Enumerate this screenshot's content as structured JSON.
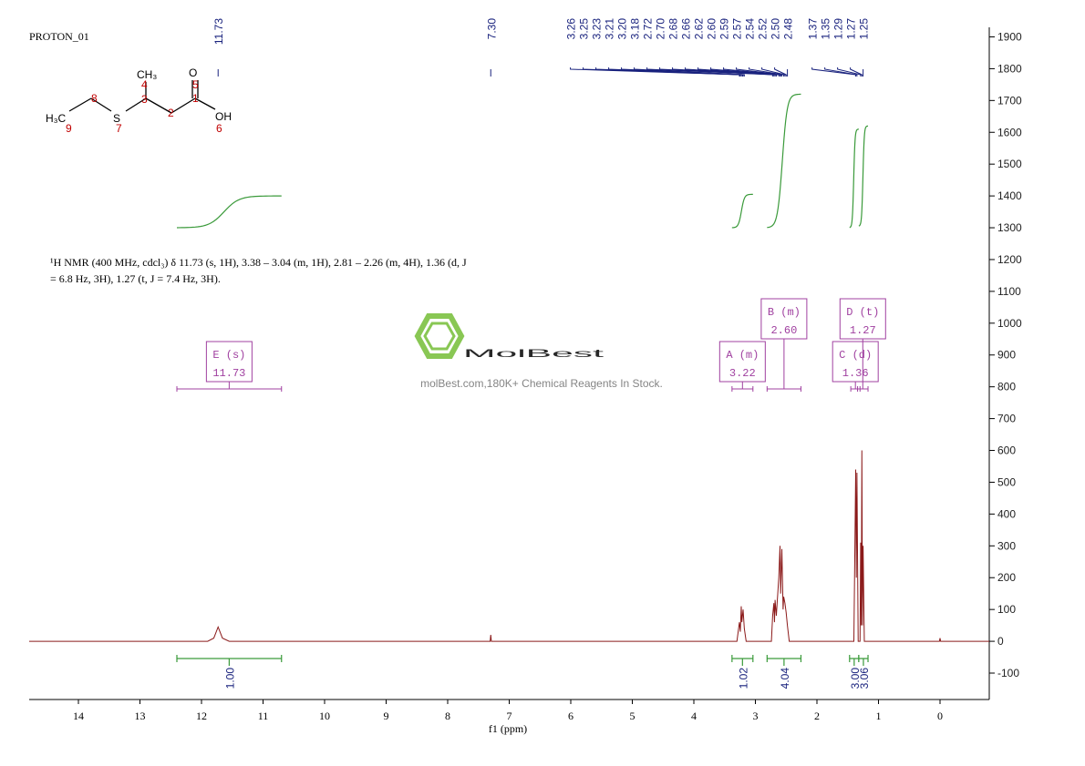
{
  "chart_data": {
    "type": "line",
    "title": "PROTON_01",
    "description": [
      "¹H NMR (400 MHz, cdcl₃) δ 11.73 (s, 1H), 3.38 – 3.04 (m, 1H), 2.81 – 2.26 (m, 4H), 1.36 (d, J",
      "= 6.8 Hz, 3H), 1.27 (t, J = 7.4 Hz, 3H)."
    ],
    "xlabel": "f1 (ppm)",
    "xlim": [
      14.8,
      -0.8
    ],
    "xticks": [
      14,
      13,
      12,
      11,
      10,
      9,
      8,
      7,
      6,
      5,
      4,
      3,
      2,
      1,
      0
    ],
    "ylim": [
      -183,
      1930
    ],
    "yticks": [
      -100,
      0,
      100,
      200,
      300,
      400,
      500,
      600,
      700,
      800,
      900,
      1000,
      1100,
      1200,
      1300,
      1400,
      1500,
      1600,
      1700,
      1800,
      1900
    ],
    "color": "#8b1a1a",
    "x": [
      14.8,
      11.9,
      11.8,
      11.73,
      11.66,
      11.55,
      7.31,
      7.3,
      7.29,
      3.3,
      3.26,
      3.245,
      3.23,
      3.22,
      3.2,
      3.18,
      3.15,
      2.74,
      2.72,
      2.7,
      2.69,
      2.68,
      2.66,
      2.62,
      2.6,
      2.59,
      2.57,
      2.55,
      2.54,
      2.52,
      2.5,
      2.48,
      2.45,
      1.4,
      1.37,
      1.36,
      1.35,
      1.33,
      1.3,
      1.29,
      1.28,
      1.27,
      1.26,
      1.25,
      1.23,
      0.01,
      0,
      -0.01,
      -0.8
    ],
    "values": [
      0,
      0,
      10,
      45,
      10,
      0,
      0,
      20,
      0,
      0,
      60,
      30,
      110,
      60,
      100,
      40,
      0,
      0,
      80,
      120,
      60,
      130,
      80,
      200,
      300,
      150,
      290,
      100,
      140,
      120,
      90,
      50,
      0,
      0,
      540,
      200,
      530,
      0,
      0,
      310,
      50,
      600,
      50,
      300,
      0,
      0,
      10,
      0,
      0
    ],
    "peak_color": "#1a237e",
    "peaks": [
      {
        "value": 11.73,
        "label": "11.73"
      },
      {
        "value": 7.3,
        "label": "7.30"
      },
      {
        "value": 3.26,
        "label": "3.26"
      },
      {
        "value": 3.25,
        "label": "3.25"
      },
      {
        "value": 3.23,
        "label": "3.23"
      },
      {
        "value": 3.21,
        "label": "3.21"
      },
      {
        "value": 3.2,
        "label": "3.20"
      },
      {
        "value": 3.18,
        "label": "3.18"
      },
      {
        "value": 2.72,
        "label": "2.72"
      },
      {
        "value": 2.7,
        "label": "2.70"
      },
      {
        "value": 2.68,
        "label": "2.68"
      },
      {
        "value": 2.66,
        "label": "2.66"
      },
      {
        "value": 2.62,
        "label": "2.62"
      },
      {
        "value": 2.6,
        "label": "2.60"
      },
      {
        "value": 2.59,
        "label": "2.59"
      },
      {
        "value": 2.57,
        "label": "2.57"
      },
      {
        "value": 2.54,
        "label": "2.54"
      },
      {
        "value": 2.52,
        "label": "2.52"
      },
      {
        "value": 2.5,
        "label": "2.50"
      },
      {
        "value": 2.48,
        "label": "2.48"
      },
      {
        "value": 1.37,
        "label": "1.37"
      },
      {
        "value": 1.35,
        "label": "1.35"
      },
      {
        "value": 1.29,
        "label": "1.29"
      },
      {
        "value": 1.27,
        "label": "1.27"
      },
      {
        "value": 1.25,
        "label": "1.25"
      }
    ],
    "integral_color": "#3a9a3a",
    "integrals": [
      {
        "range": [
          12.4,
          10.7
        ],
        "curve": [
          1300,
          1400
        ],
        "value": 1,
        "label": "1.00"
      },
      {
        "range": [
          3.38,
          3.04
        ],
        "curve": [
          1300,
          1405
        ],
        "value": 1.02,
        "label": "1.02"
      },
      {
        "range": [
          2.81,
          2.26
        ],
        "curve": [
          1300,
          1720
        ],
        "value": 4.04,
        "label": "4.04"
      },
      {
        "range": [
          1.47,
          1.32
        ],
        "curve": [
          1300,
          1610
        ],
        "value": 3,
        "label": "3.00"
      },
      {
        "range": [
          1.32,
          1.17
        ],
        "curve": [
          1305,
          1620
        ],
        "value": 3.06,
        "label": "3.06"
      }
    ],
    "multiplet_color": "#a040a0",
    "multiplets": [
      {
        "name": "E (s)",
        "shift": "11.73",
        "range": [
          12.4,
          10.7
        ]
      },
      {
        "name": "A (m)",
        "shift": "3.22",
        "range": [
          3.38,
          3.04
        ]
      },
      {
        "name": "B (m)",
        "shift": "2.60",
        "range": [
          2.81,
          2.26
        ]
      },
      {
        "name": "C (d)",
        "shift": "1.36",
        "range": [
          1.45,
          1.3
        ]
      },
      {
        "name": "D (t)",
        "shift": "1.27",
        "range": [
          1.34,
          1.17
        ]
      }
    ],
    "structure": {
      "atoms": [
        "CH₃",
        "O",
        "H₃C",
        "S",
        "OH"
      ],
      "locants": [
        "1",
        "2",
        "3",
        "4",
        "5",
        "6",
        "7",
        "8",
        "9"
      ]
    },
    "watermark": {
      "brand": "MolBest",
      "tagline": "molBest.com,180K+ Chemical Reagents In Stock."
    }
  }
}
